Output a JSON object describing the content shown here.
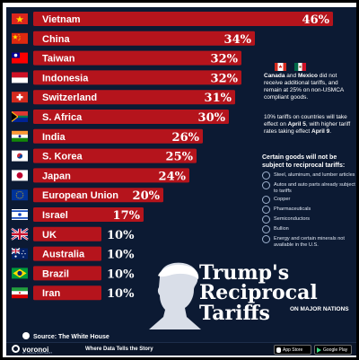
{
  "colors": {
    "background": "#0c1a33",
    "bar": "#b5141c",
    "text": "#ffffff"
  },
  "chart_data": {
    "type": "bar",
    "orientation": "horizontal",
    "unit": "%",
    "categories": [
      "Vietnam",
      "China",
      "Taiwan",
      "Indonesia",
      "Switzerland",
      "S. Africa",
      "India",
      "S. Korea",
      "Japan",
      "European Union",
      "Israel",
      "UK",
      "Australia",
      "Brazil",
      "Iran"
    ],
    "values": [
      46,
      34,
      32,
      32,
      31,
      30,
      26,
      25,
      24,
      20,
      17,
      10,
      10,
      10,
      10
    ],
    "value_labels": [
      "46%",
      "34%",
      "32%",
      "32%",
      "31%",
      "30%",
      "26%",
      "25%",
      "24%",
      "20%",
      "17%",
      "10%",
      "10%",
      "10%",
      "10%"
    ],
    "flags": [
      "vietnam-flag-icon",
      "china-flag-icon",
      "taiwan-flag-icon",
      "indonesia-flag-icon",
      "switzerland-flag-icon",
      "south-africa-flag-icon",
      "india-flag-icon",
      "south-korea-flag-icon",
      "japan-flag-icon",
      "eu-flag-icon",
      "israel-flag-icon",
      "uk-flag-icon",
      "australia-flag-icon",
      "brazil-flag-icon",
      "iran-flag-icon"
    ],
    "xlim": [
      0,
      46
    ],
    "grid": false,
    "legend": "none"
  },
  "notes": {
    "note1_parts": [
      "Canada",
      " and ",
      "Mexico",
      " did not receive additional tariffs, and remain at 25% on non-USMCA compliant goods."
    ],
    "note2_parts": [
      "10% tariffs on countries will take effect on ",
      "April 5",
      ", with higher tariff rates taking effect ",
      "April 9",
      "."
    ]
  },
  "exemptions": {
    "title": "Certain goods will not be subject to reciprocal tariffs:",
    "items": [
      "Steel, aluminum, and lumber articles",
      "Autos and auto parts already subject to tariffs",
      "Copper",
      "Pharmaceuticals",
      "Semiconductors",
      "Bullion",
      "Energy and certain minerals not available in the U.S."
    ]
  },
  "title": {
    "line1": "Trump's",
    "line2": "Reciprocal",
    "line3": "Tariffs",
    "subtitle": "ON MAJOR NATIONS"
  },
  "source": "Source: The White House",
  "footer": {
    "brand": "voronoi",
    "brand_sub": "BY VISUAL CAPITALIST",
    "tagline": "Where Data Tells the Story",
    "app_store": "App Store",
    "google_play": "Google Play"
  }
}
